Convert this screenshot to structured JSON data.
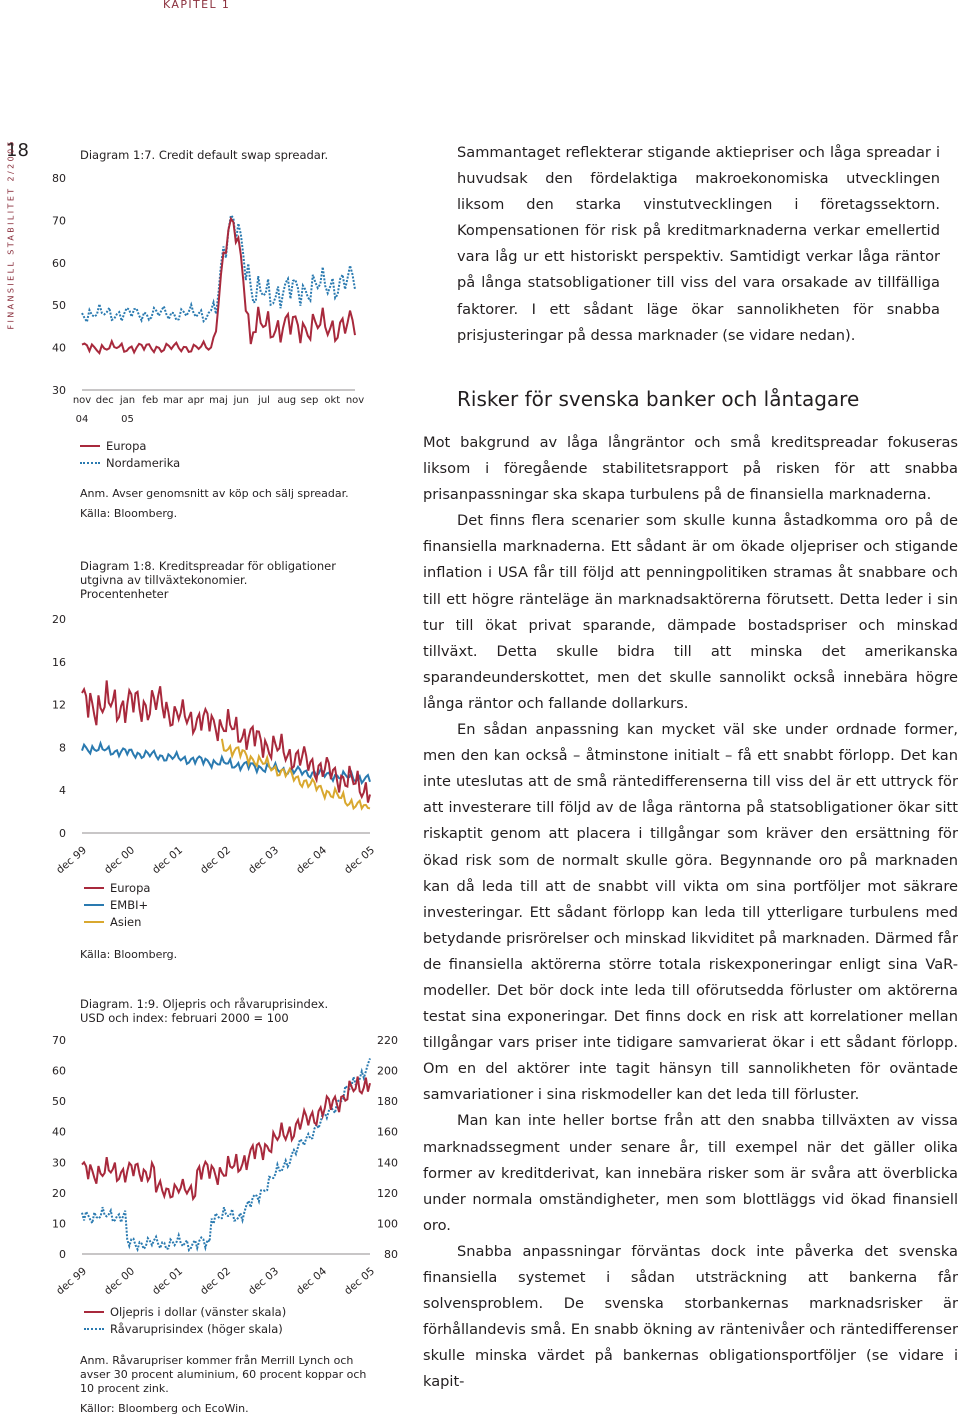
{
  "header": {
    "chapter": "KAPITEL 1",
    "page_number": "18",
    "publication": "FINANSIELL STABILITET 2/2005"
  },
  "charts": [
    {
      "title": "Diagram 1:7. Credit default swap spreadar.",
      "legend": [
        {
          "name": "Europa",
          "color": "#a8293c",
          "style": "solid"
        },
        {
          "name": "Nordamerika",
          "color": "#2a7ab0",
          "style": "dotted"
        }
      ],
      "notes": [
        "Anm. Avser genomsnitt av köp och sälj spreadar.",
        "Källa: Bloomberg."
      ]
    },
    {
      "title": "Diagram 1:8. Kreditspreadar för obligationer utgivna av tillväxtekonomier.",
      "subtitle": "Procentenheter",
      "legend": [
        {
          "name": "Europa",
          "color": "#a8293c",
          "style": "solid"
        },
        {
          "name": "EMBI+",
          "color": "#2a7ab0",
          "style": "solid"
        },
        {
          "name": "Asien",
          "color": "#d9a82f",
          "style": "solid"
        }
      ],
      "notes": [
        "Källa: Bloomberg."
      ]
    },
    {
      "title": "Diagram. 1:9. Oljepris och råvaruprisindex.",
      "subtitle": "USD och index: februari 2000 = 100",
      "legend": [
        {
          "name": "Oljepris i dollar (vänster skala)",
          "color": "#a8293c",
          "style": "solid"
        },
        {
          "name": "Råvaruprisindex (höger skala)",
          "color": "#2a7ab0",
          "style": "dotted"
        }
      ],
      "notes": [
        "Anm. Råvarupriser kommer från Merrill Lynch och avser 30 procent aluminium, 60 procent koppar och 10 procent zink.",
        "Källor: Bloomberg och EcoWin."
      ]
    }
  ],
  "chart_data": [
    {
      "type": "line",
      "ylim": [
        30,
        80
      ],
      "yticks": [
        30,
        40,
        50,
        60,
        70,
        80
      ],
      "xticks": [
        "nov",
        "dec",
        "jan",
        "feb",
        "mar",
        "apr",
        "maj",
        "jun",
        "jul",
        "aug",
        "sep",
        "okt",
        "nov"
      ],
      "year_labels": [
        "04",
        "05"
      ],
      "series": [
        {
          "name": "Europa",
          "x": [
            0,
            0.25,
            0.5,
            0.75,
            1,
            1.25,
            1.5,
            1.75,
            2,
            2.25,
            2.5,
            2.75,
            3,
            3.25,
            3.5,
            3.75,
            4,
            4.25,
            4.5,
            4.75,
            5,
            5.25,
            5.5,
            5.75,
            6,
            6.25,
            6.5,
            6.75,
            7,
            7.25,
            7.5,
            7.75,
            8,
            8.25,
            8.5,
            8.75,
            9,
            9.25,
            9.5,
            9.75,
            10,
            10.25,
            10.5,
            10.75,
            11,
            11.25,
            11.5,
            11.75,
            12
          ],
          "y": [
            null,
            null,
            null,
            null,
            null,
            null,
            null,
            null,
            null,
            null,
            null,
            null,
            null,
            null,
            null,
            null,
            null,
            null,
            null,
            null,
            null,
            null,
            null,
            null,
            null,
            null,
            null,
            null,
            null,
            null,
            null,
            null,
            null,
            null,
            null,
            null,
            null,
            null,
            null,
            null,
            null,
            null,
            null,
            null,
            null,
            null,
            null,
            null,
            null
          ]
        },
        {
          "name": "Nordamerika",
          "x": [],
          "y": []
        }
      ]
    },
    {
      "type": "line",
      "ylim": [
        0,
        20
      ],
      "yticks": [
        0,
        4,
        8,
        12,
        16,
        20
      ],
      "xticks": [
        "dec 99",
        "dec 00",
        "dec 01",
        "dec 02",
        "dec 03",
        "dec 04",
        "dec 05"
      ],
      "series": [
        {
          "name": "Europa",
          "x": [],
          "y": []
        },
        {
          "name": "EMBI+",
          "x": [],
          "y": []
        },
        {
          "name": "Asien",
          "x": [],
          "y": []
        }
      ]
    },
    {
      "type": "line",
      "ylim": [
        0,
        70
      ],
      "yticks": [
        0,
        10,
        20,
        30,
        40,
        50,
        60,
        70
      ],
      "y2lim": [
        80,
        220
      ],
      "y2ticks": [
        80,
        100,
        120,
        140,
        160,
        180,
        200,
        220
      ],
      "xticks": [
        "dec 99",
        "dec 00",
        "dec 01",
        "dec 02",
        "dec 03",
        "dec 04",
        "dec 05"
      ],
      "series": [
        {
          "name": "Oljepris i dollar (vänster skala)",
          "x": [],
          "y": []
        },
        {
          "name": "Råvaruprisindex (höger skala)",
          "x": [],
          "y": []
        }
      ]
    }
  ],
  "text": {
    "paragraph_top": "Sammantaget reflekterar stigande aktiepriser och låga spreadar i huvudsak den fördelaktiga makroekonomiska utvecklingen liksom den starka vinstutvecklingen i företagssektorn. Kompensationen för risk på kreditmarknaderna verkar emellertid vara låg ur ett historiskt perspektiv. Samtidigt verkar låga räntor på långa statsobligationer till viss del vara orsakade av tillfälliga faktorer. I ett sådant läge ökar sannolikheten för snabba prisjusteringar på dessa marknader (se vidare nedan).",
    "heading": "Risker för svenska banker och låntagare",
    "paragraphs": [
      "Mot bakgrund av låga långräntor och små kreditspreadar fokuseras liksom i föregående stabilitetsrapport på risken för att snabba prisanpassningar ska skapa turbulens på de finansiella marknaderna.",
      "Det finns flera scenarier som skulle kunna åstadkomma oro på de finansiella marknaderna. Ett sådant är om ökade oljepriser och stigande inflation i USA får till följd att penningpolitiken stramas åt snabbare och till ett högre ränteläge än marknadsaktörerna förutsett. Detta leder i sin tur till ökat privat sparande, dämpade bostadspriser och minskad tillväxt. Detta skulle bidra till att minska det amerikanska sparandeunderskottet, men det skulle sannolikt också innebära högre långa räntor och fallande dollarkurs.",
      "En sådan anpassning kan mycket väl ske under ordnade former, men den kan också – åtminstone initialt – få ett snabbt förlopp. Det kan inte uteslutas att de små räntedifferenserna till viss del är ett uttryck för att investerare till följd av de låga räntorna på statsobligationer ökar sitt riskaptit genom att placera i tillgångar som kräver den ersättning för ökad risk som de normalt skulle göra. Begynnande oro på marknaden kan då leda till att de snabbt vill vikta om sina portföljer mot säkrare investeringar. Ett sådant förlopp kan leda till ytterligare turbulens med betydande prisrörelser och minskad likviditet på marknaden. Därmed får de finansiella aktörerna större totala riskexponeringar enligt sina VaR-modeller. Det bör dock inte leda till oförutsedda förluster om aktörerna testat sina exponeringar. Det finns dock en risk att korrelationer mellan tillgångar vars priser inte tidigare samvarierat ökar i ett sådant förlopp. Om en del aktörer inte tagit hänsyn till sannolikheten för oväntade samvariationer i sina riskmodeller kan det leda till förluster.",
      "Man kan inte heller bortse från att den snabba tillväxten av vissa marknadssegment under senare år, till exempel när det gäller olika former av kreditderivat, kan innebära risker som är svåra att överblicka under normala omständigheter, men som blottläggs vid ökad finansiell oro.",
      "Snabba anpassningar förväntas dock inte påverka det svenska finansiella systemet i sådan utsträckning att bankerna får solvensproblem. De svenska storbankernas marknadsrisker är förhållandevis små. En snabb ökning av räntenivåer och räntedifferenser skulle minska värdet på bankernas obligationsportföljer (se vidare i kapit-"
    ]
  }
}
